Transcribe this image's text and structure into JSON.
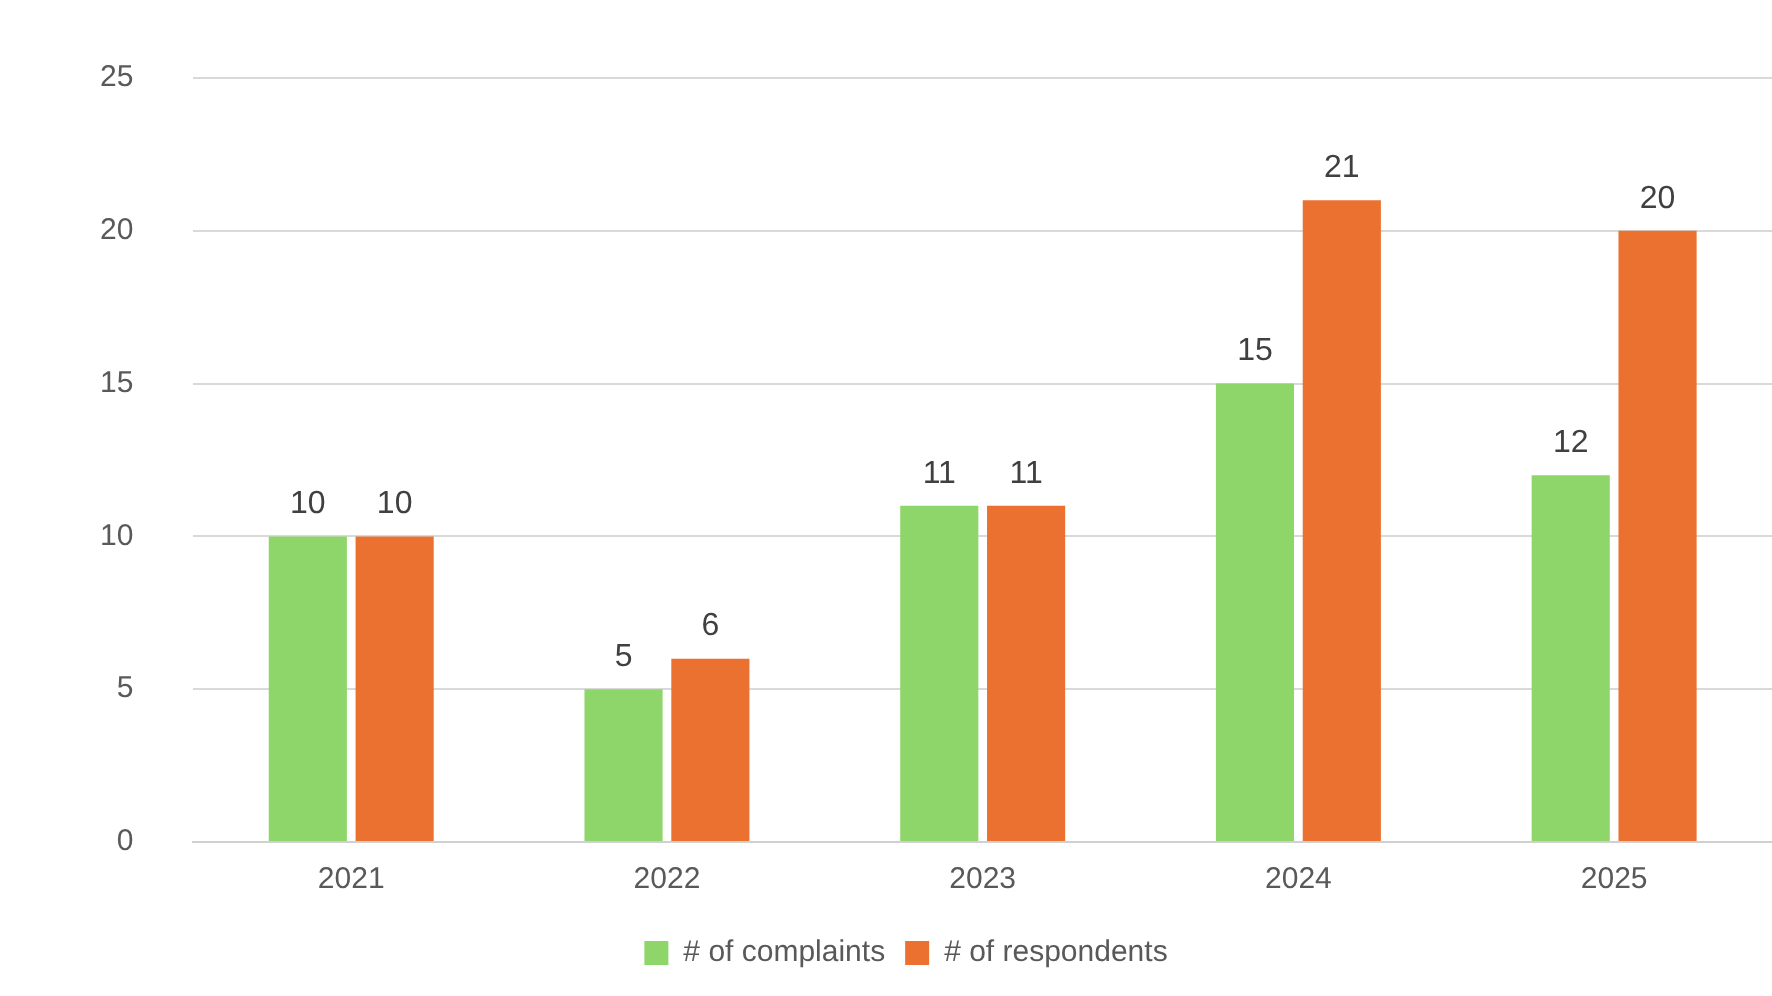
{
  "chart_data": {
    "type": "bar",
    "categories": [
      "2021",
      "2022",
      "2023",
      "2024",
      "2025"
    ],
    "series": [
      {
        "name": "# of complaints",
        "color": "#8fd66a",
        "values": [
          10,
          5,
          11,
          15,
          12
        ]
      },
      {
        "name": "# of respondents",
        "color": "#ea7130",
        "values": [
          10,
          6,
          11,
          21,
          20
        ]
      }
    ],
    "ylim": [
      0,
      25
    ],
    "yticks": [
      0,
      5,
      10,
      15,
      20,
      25
    ],
    "grid": "y",
    "legend": "bottom",
    "data_labels": true
  }
}
